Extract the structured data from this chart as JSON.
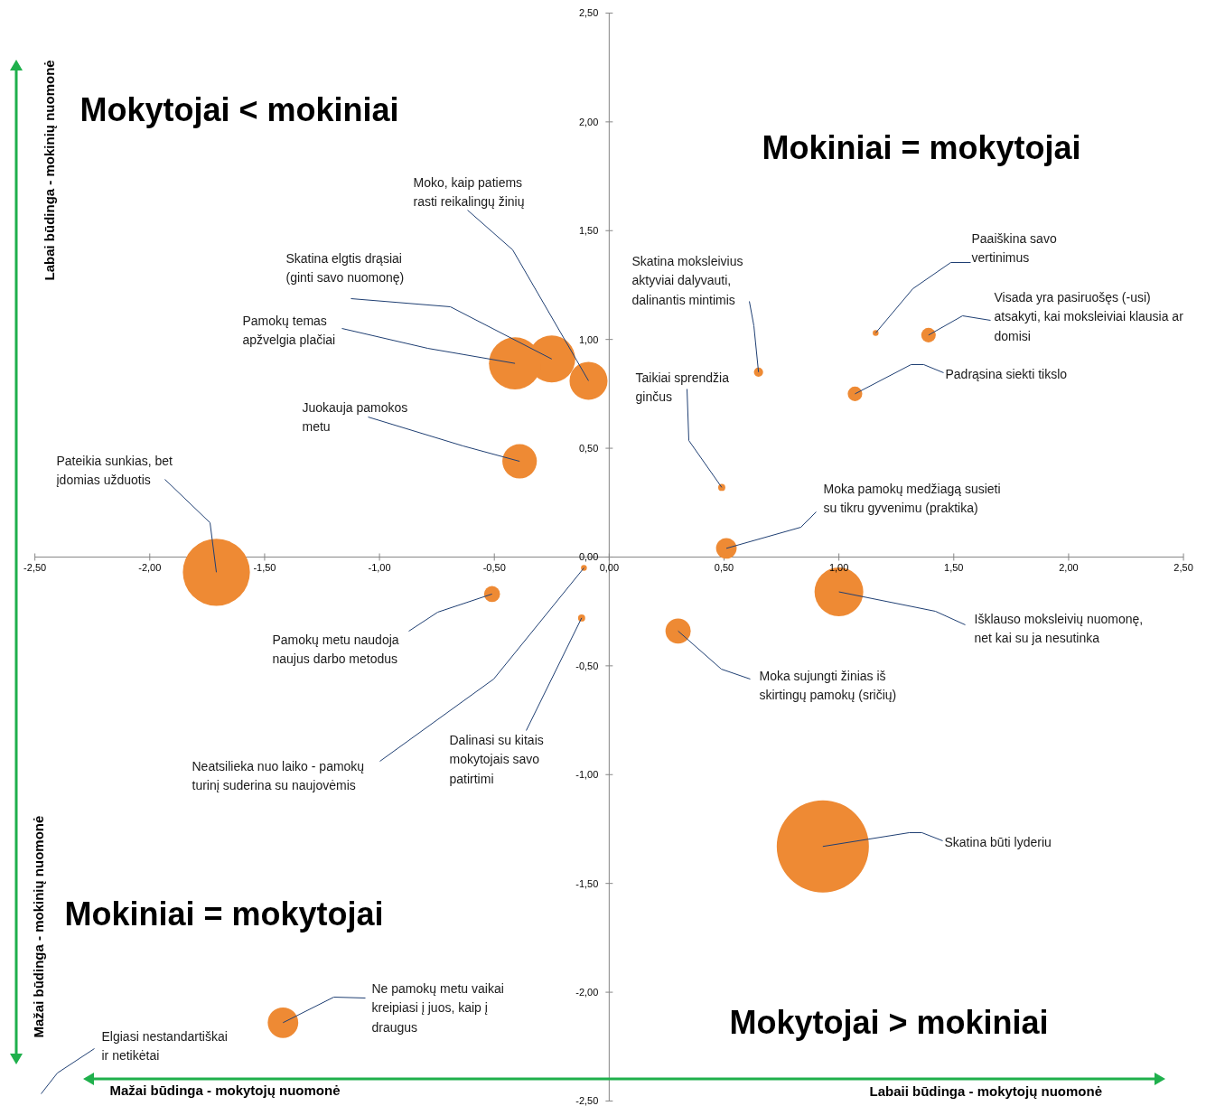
{
  "chart_data": {
    "type": "bubble",
    "color": "#ee8a34",
    "x": [
      -0.09,
      -0.25,
      -0.41,
      -0.39,
      -1.71,
      -0.51,
      -0.11,
      -0.12,
      -1.42,
      0.65,
      0.49,
      0.51,
      1.16,
      1.39,
      1.07,
      1.0,
      0.3,
      0.93
    ],
    "values": [
      0.81,
      0.91,
      0.89,
      0.44,
      -0.07,
      -0.17,
      -0.05,
      -0.28,
      -2.14,
      0.85,
      0.32,
      0.04,
      1.03,
      1.02,
      0.75,
      -0.16,
      -0.34,
      -1.33
    ],
    "sizes": [
      0.17,
      0.26,
      0.32,
      0.14,
      0.53,
      0.03,
      0.004,
      0.006,
      0.11,
      0.01,
      0.006,
      0.05,
      0.004,
      0.025,
      0.025,
      0.28,
      0.075,
      1
    ],
    "xlim": [
      -2.5,
      2.5
    ],
    "ylim": [
      -2.5,
      2.5
    ],
    "xticks": [
      {
        "value": -2.5,
        "label": "-2,50"
      },
      {
        "value": -2,
        "label": "-2,00"
      },
      {
        "value": -1.5,
        "label": "-1,50"
      },
      {
        "value": -1,
        "label": "-1,00"
      },
      {
        "value": -0.5,
        "label": "-0,50"
      },
      {
        "value": 0,
        "label": "0,00"
      },
      {
        "value": 0.5,
        "label": "0,50"
      },
      {
        "value": 1,
        "label": "1,00"
      },
      {
        "value": 1.5,
        "label": "1,50"
      },
      {
        "value": 2,
        "label": "2,00"
      },
      {
        "value": 2.5,
        "label": "2,50"
      }
    ],
    "yticks": [
      {
        "value": -2.5,
        "label": "-2,50"
      },
      {
        "value": -2,
        "label": "-2,00"
      },
      {
        "value": -1.5,
        "label": "-1,50"
      },
      {
        "value": -1,
        "label": "-1,00"
      },
      {
        "value": -0.5,
        "label": "-0,50"
      },
      {
        "value": 0,
        "label": "0,00"
      },
      {
        "value": 0.5,
        "label": "0,50"
      },
      {
        "value": 1,
        "label": "1,00"
      },
      {
        "value": 1.5,
        "label": "1,50"
      },
      {
        "value": 2,
        "label": "2,00"
      },
      {
        "value": 2.5,
        "label": "2,50"
      }
    ],
    "annotations": [
      "Mokytojai < mokiniai",
      "Mokiniai = mokytojai",
      "Mokiniai = mokytojai",
      "Mokytojai > mokiniai",
      "Labai būdinga - mokinių nuomonė",
      "Mažai būdinga - mokinių nuomonė",
      "Mažai būdinga - mokytojų nuomonė",
      "Labaii būdinga - mokytojų nuomonė",
      {
        "text": "Moko, kaip patiems\nrasti reikalingų žinių",
        "x": -0.09,
        "y": 0.81
      },
      {
        "text": "Skatina elgtis drąsiai\n(ginti savo nuomonę)",
        "x": -0.25,
        "y": 0.91
      },
      {
        "text": "Pamokų temas\napžvelgia plačiai",
        "x": -0.41,
        "y": 0.89
      },
      {
        "text": "Juokauja pamokos\nmetu",
        "x": -0.39,
        "y": 0.44
      },
      {
        "text": "Pateikia sunkias, bet\nįdomias užduotis",
        "x": -1.71,
        "y": -0.07
      },
      {
        "text": "Pamokų metu naudoja\nnaujus darbo metodus",
        "x": -0.51,
        "y": -0.17
      },
      {
        "text": "Neatsilieka nuo laiko - pamokų\nturinį suderina su naujovėmis",
        "x": -0.11,
        "y": -0.05
      },
      {
        "text": "Dalinasi su kitais\nmokytojais savo\npatirtimi",
        "x": -0.12,
        "y": -0.28
      },
      {
        "text": "Ne pamokų metu vaikai\nkreipiasi į juos, kaip į\ndraugus",
        "x": -1.42,
        "y": -2.14
      },
      "Elgiasi nestandartiškai\nir netikėtai",
      {
        "text": "Skatina moksleivius\naktyviai dalyvauti,\ndalinantis mintimis",
        "x": 0.65,
        "y": 0.85
      },
      {
        "text": "Taikiai sprendžia\nginčus",
        "x": 0.49,
        "y": 0.32
      },
      {
        "text": "Moka pamokų medžiagą susieti\nsu tikru gyvenimu (praktika)",
        "x": 0.51,
        "y": 0.04
      },
      {
        "text": "Paaiškina savo\nvertinimus",
        "x": 1.16,
        "y": 1.03
      },
      {
        "text": "Visada yra pasiruošęs (-usi)\natsakyti, kai moksleiviai klausia ar\ndomisi",
        "x": 1.39,
        "y": 1.02
      },
      {
        "text": "Padrąsina siekti tikslo",
        "x": 1.07,
        "y": 0.75
      },
      {
        "text": "Išklauso moksleivių nuomonę,\nnet kai su ja nesutinka",
        "x": 1.0,
        "y": -0.16
      },
      {
        "text": "Moka sujungti žinias iš\nskirtingų pamokų (sričių)",
        "x": 0.3,
        "y": -0.34
      },
      {
        "text": "Skatina būti lyderiu",
        "x": 0.93,
        "y": -1.33
      }
    ]
  }
}
